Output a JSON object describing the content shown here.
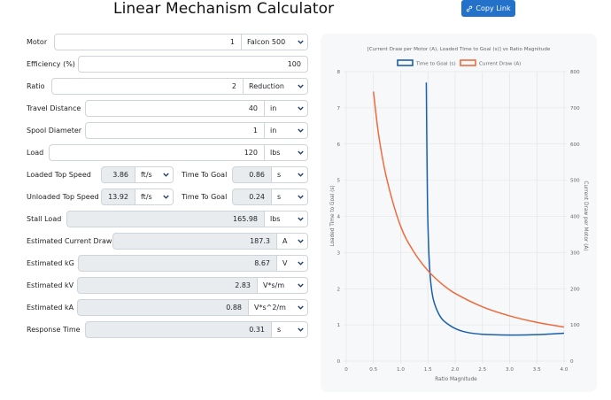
{
  "title": "Linear Mechanism Calculator",
  "copy_link": {
    "label": "Copy Link"
  },
  "motor": {
    "label": "Motor",
    "value": "1",
    "unit": "Falcon 500"
  },
  "efficiency": {
    "label": "Efficiency (%)",
    "value": "100"
  },
  "ratio": {
    "label": "Ratio",
    "value": "2",
    "unit": "Reduction"
  },
  "travel_distance": {
    "label": "Travel Distance",
    "value": "40",
    "unit": "in"
  },
  "spool_diameter": {
    "label": "Spool Diameter",
    "value": "1",
    "unit": "in"
  },
  "load": {
    "label": "Load",
    "value": "120",
    "unit": "lbs"
  },
  "loaded_top_speed": {
    "label": "Loaded Top Speed",
    "value": "3.86",
    "unit": "ft/s",
    "ttg_label": "Time To Goal",
    "ttg_value": "0.86",
    "ttg_unit": "s"
  },
  "unloaded_top_speed": {
    "label": "Unloaded Top Speed",
    "value": "13.92",
    "unit": "ft/s",
    "ttg_label": "Time To Goal",
    "ttg_value": "0.24",
    "ttg_unit": "s"
  },
  "stall_load": {
    "label": "Stall Load",
    "value": "165.98",
    "unit": "lbs"
  },
  "current_draw": {
    "label": "Estimated Current Draw",
    "value": "187.3",
    "unit": "A"
  },
  "kg": {
    "label": "Estimated kG",
    "value": "8.67",
    "unit": "V"
  },
  "kv": {
    "label": "Estimated kV",
    "value": "2.83",
    "unit": "V*s/m"
  },
  "ka": {
    "label": "Estimated kA",
    "value": "0.88",
    "unit": "V*s^2/m"
  },
  "response_time": {
    "label": "Response Time",
    "value": "0.31",
    "unit": "s"
  },
  "colors": {
    "accent": "#2371c8",
    "series_time": "#1a5fa8",
    "series_current": "#ee6a3c"
  },
  "chart_data": {
    "type": "line",
    "title": "[Current Draw per Motor (A), Loaded Time to Goal (s)] vs Ratio Magnitude",
    "xlabel": "Ratio Magnitude",
    "ylabel": "Loaded Time to Goal (s)",
    "y2label": "Current Draw per Motor (A)",
    "xlim": [
      0,
      4.0
    ],
    "ylim": [
      0,
      8
    ],
    "y2lim": [
      0,
      800
    ],
    "x_ticks": [
      "0",
      "0.5",
      "1.0",
      "1.5",
      "2.0",
      "2.5",
      "3.0",
      "3.5",
      "4.0"
    ],
    "y_ticks": [
      "0",
      "1",
      "2",
      "3",
      "4",
      "5",
      "6",
      "7",
      "8"
    ],
    "y2_ticks": [
      "0",
      "100",
      "200",
      "300",
      "400",
      "500",
      "600",
      "700",
      "800"
    ],
    "legend_position": "top",
    "grid": true,
    "series": [
      {
        "name": "Time to Goal (s)",
        "axis": "left",
        "x": [
          1.47,
          1.48,
          1.49,
          1.5,
          1.52,
          1.55,
          1.6,
          1.7,
          1.8,
          2.0,
          2.2,
          2.5,
          3.0,
          3.5,
          4.0
        ],
        "y": [
          7.7,
          6.0,
          4.6,
          3.8,
          2.9,
          2.2,
          1.7,
          1.3,
          1.1,
          0.9,
          0.8,
          0.74,
          0.72,
          0.73,
          0.77
        ]
      },
      {
        "name": "Current Draw (A)",
        "axis": "right",
        "x": [
          0.5,
          0.6,
          0.75,
          1.0,
          1.25,
          1.5,
          1.75,
          2.0,
          2.5,
          3.0,
          3.5,
          4.0
        ],
        "y": [
          745,
          620,
          500,
          372,
          300,
          250,
          214,
          187,
          150,
          125,
          107,
          94
        ]
      }
    ]
  }
}
